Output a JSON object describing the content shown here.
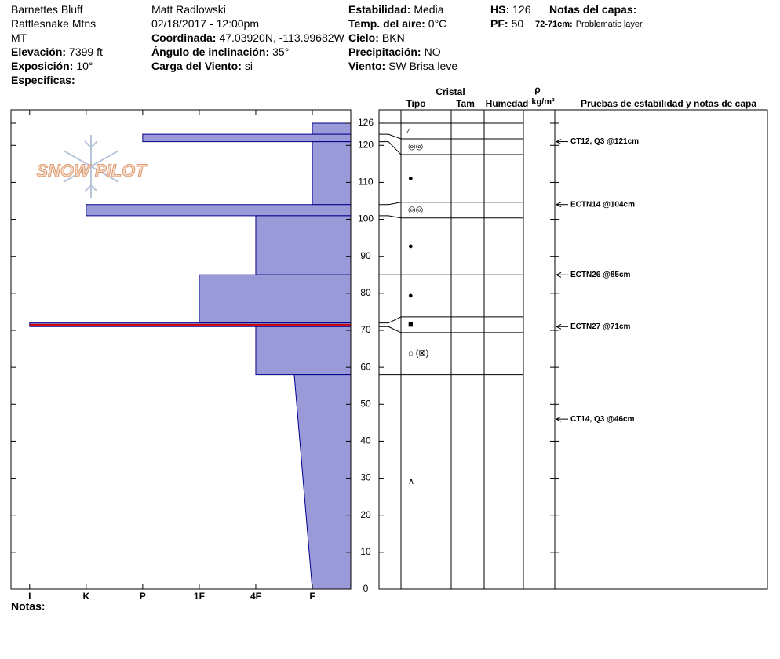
{
  "header": {
    "columns": [
      {
        "rows": [
          {
            "value": "Barnettes Bluff"
          },
          {
            "value": "Rattlesnake Mtns"
          },
          {
            "value": "MT"
          },
          {
            "label": "Elevación:",
            "value": "7399 ft"
          },
          {
            "label": "Exposición:",
            "value": "10°"
          },
          {
            "label": "Especificas:"
          }
        ]
      },
      {
        "rows": [
          {
            "value": "Matt Radlowski"
          },
          {
            "value": "02/18/2017 - 12:00pm"
          },
          {
            "label": "Coordinada:",
            "value": "47.03920N, -113.99682W"
          },
          {
            "label": "Ángulo de inclinación:",
            "value": "35°"
          },
          {
            "label": "Carga del Viento:",
            "value": "si"
          }
        ]
      },
      {
        "rows": [
          {
            "label": "Estabilidad:",
            "value": "Media"
          },
          {
            "label": "Temp. del aire:",
            "value": "0°C"
          },
          {
            "label": "Cielo:",
            "value": "BKN"
          },
          {
            "label": "Precipitación:",
            "value": "NO"
          },
          {
            "label": "Viento:",
            "value": "SW Brisa leve"
          }
        ]
      },
      {
        "rows": [
          {
            "label": "HS:",
            "value": "126"
          },
          {
            "label": "PF:",
            "value": "50"
          }
        ]
      }
    ],
    "layer_notes": {
      "title": "Notas del capas:",
      "items": [
        {
          "label": "72-71cm:",
          "value": "Problematic layer"
        }
      ]
    }
  },
  "chart_data": {
    "type": "snow-profile",
    "logo": "SNOW PILOT",
    "ylim": [
      0,
      126
    ],
    "yticks": [
      0,
      10,
      20,
      30,
      40,
      50,
      60,
      70,
      80,
      90,
      100,
      110,
      120,
      126
    ],
    "xlim": [
      5.33,
      -0.68
    ],
    "xticks": [
      {
        "value": 5,
        "label": "I"
      },
      {
        "value": 4,
        "label": "K"
      },
      {
        "value": 3,
        "label": "P"
      },
      {
        "value": 2,
        "label": "1F"
      },
      {
        "value": 1,
        "label": "4F"
      },
      {
        "value": 0,
        "label": "F"
      }
    ],
    "color": "#9a9ad8",
    "layers": [
      {
        "top": 126,
        "bottom": 123,
        "hardness": 0,
        "grain": "⁄"
      },
      {
        "top": 123,
        "bottom": 121,
        "hardness": 3,
        "grain": "◎◎"
      },
      {
        "top": 121,
        "bottom": 104,
        "hardness": 0,
        "grain": "●"
      },
      {
        "top": 104,
        "bottom": 101,
        "hardness": 4,
        "grain": "◎◎"
      },
      {
        "top": 101,
        "bottom": 85,
        "hardness": 1,
        "grain": "●"
      },
      {
        "top": 85,
        "bottom": 72,
        "hardness": 2,
        "grain": "●"
      },
      {
        "top": 72,
        "bottom": 71,
        "hardness": 5,
        "grain": "■"
      },
      {
        "top": 71,
        "bottom": 58,
        "hardness": 1,
        "grain": "⌂ (⊠)"
      },
      {
        "top": 58,
        "bottom": 0,
        "hardness": 0.32,
        "hardness_bottom": 0,
        "grain": "∧"
      }
    ],
    "problem_layer": {
      "top": 72,
      "bottom": 71,
      "color": "#cc0000"
    },
    "grain_columns": {
      "cristal": "Cristal",
      "tipo": "Tipo",
      "tam": "Tam",
      "humedad": "Humedad",
      "rho": "ρ",
      "density_unit": "kg/m³",
      "tests": "Pruebas de estabilidad y notas de capa"
    },
    "tests": [
      {
        "label": "CT12, Q3 @121cm",
        "height": 121
      },
      {
        "label": "ECTN14 @104cm",
        "height": 104
      },
      {
        "label": "ECTN26 @85cm",
        "height": 85
      },
      {
        "label": "ECTN27 @71cm",
        "height": 71
      },
      {
        "label": "CT14, Q3 @46cm",
        "height": 46
      }
    ],
    "notes_label": "Notas:"
  }
}
